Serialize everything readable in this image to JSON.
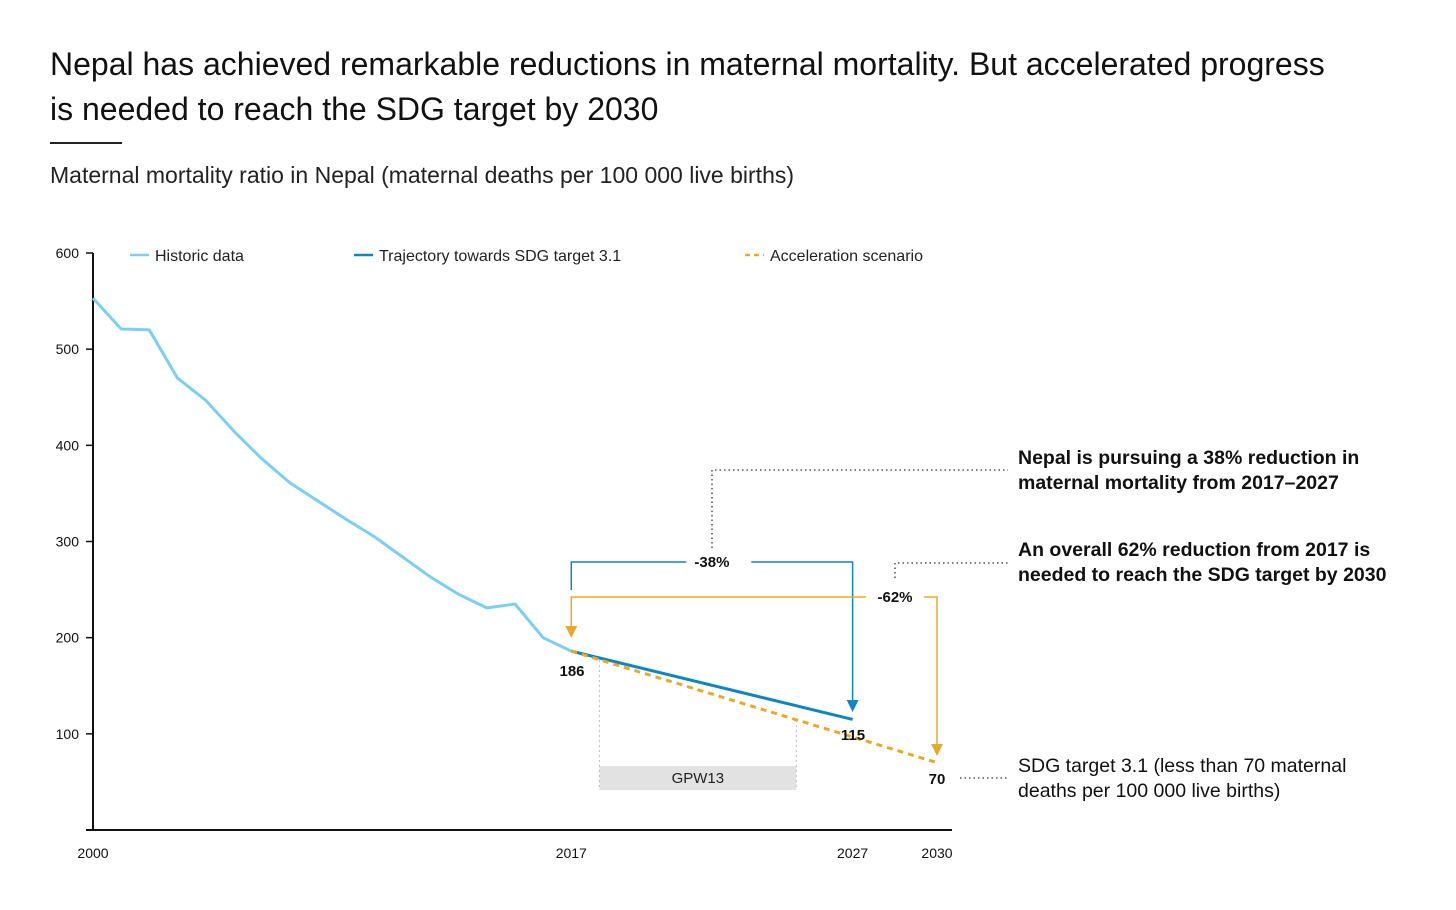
{
  "header": {
    "title": "Nepal has achieved remarkable reductions in maternal mortality. But accelerated progress is needed to reach the SDG target by 2030",
    "subtitle": "Maternal mortality ratio in Nepal (maternal deaths per 100 000 live births)"
  },
  "colors": {
    "historic": "#7ACFF2",
    "trajectory": "#0E86C2",
    "acceleration": "#E8A82A",
    "gpw_band": "#E2E2E2",
    "axis": "#111111"
  },
  "annotations": {
    "bracket_38": "-38%",
    "bracket_62": "-62%",
    "val_2017": "186",
    "val_2027": "115",
    "val_2030": "70",
    "gpw": "GPW13",
    "note_38": "Nepal is pursuing a 38% reduction in maternal mortality from 2017–2027",
    "note_62": "An overall 62% reduction from 2017 is needed to reach the SDG target by 2030",
    "note_sdg": "SDG target 3.1 (less than 70 maternal deaths per 100 000 live births)"
  },
  "chart_data": {
    "type": "line",
    "title": "Maternal mortality ratio in Nepal (maternal deaths per 100 000 live births)",
    "ylim": [
      0,
      600
    ],
    "yticks": [
      100,
      200,
      300,
      400,
      500,
      600
    ],
    "xlim": [
      2000,
      2030
    ],
    "xticks": [
      2000,
      2017,
      2027,
      2030
    ],
    "grid": false,
    "legend_position": "top",
    "series": [
      {
        "name": "Historic data",
        "style": "solid",
        "x": [
          2000,
          2001,
          2002,
          2003,
          2004,
          2005,
          2006,
          2007,
          2008,
          2009,
          2010,
          2011,
          2012,
          2013,
          2014,
          2015,
          2016,
          2017
        ],
        "y": [
          553,
          521,
          520,
          470,
          447,
          415,
          386,
          361,
          342,
          323,
          305,
          284,
          263,
          245,
          231,
          235,
          200,
          186
        ]
      },
      {
        "name": "Trajectory towards SDG target 3.1",
        "style": "solid",
        "x": [
          2017,
          2027
        ],
        "y": [
          186,
          115
        ]
      },
      {
        "name": "Acceleration scenario",
        "style": "dashed",
        "x": [
          2017,
          2030
        ],
        "y": [
          186,
          70
        ]
      }
    ],
    "annotations": [
      {
        "label": "-38%",
        "from": 2017,
        "to": 2027
      },
      {
        "label": "-62%",
        "from": 2017,
        "to": 2030
      },
      {
        "label": "GPW13",
        "from": 2018,
        "to": 2025
      }
    ]
  }
}
